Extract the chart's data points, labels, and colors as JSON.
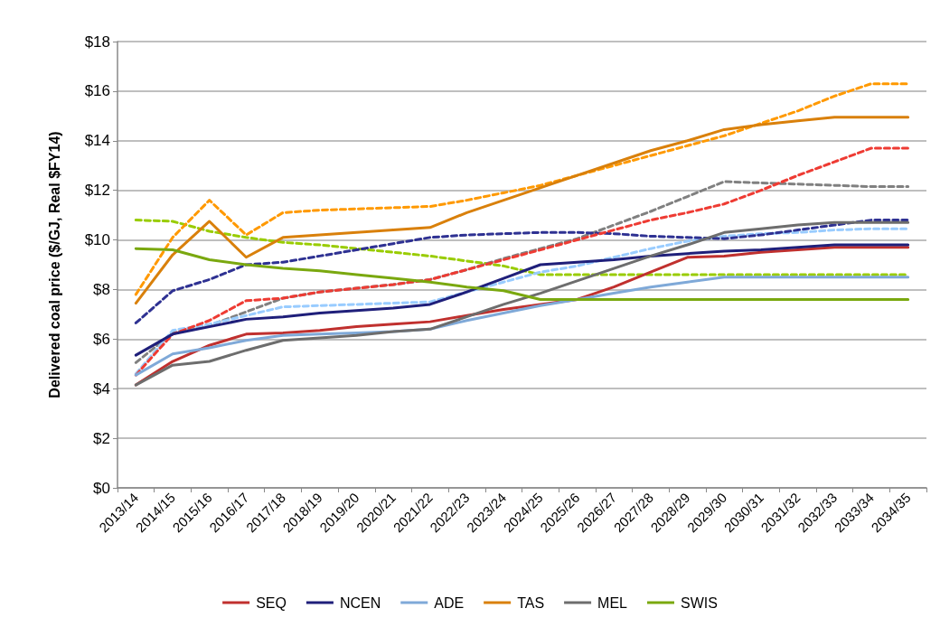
{
  "chart_data": {
    "type": "line",
    "ylabel": "Delivered coal price ($/GJ, Real $FY14)",
    "categories": [
      "2013/14",
      "2014/15",
      "2015/16",
      "2016/17",
      "2017/18",
      "2018/19",
      "2019/20",
      "2020/21",
      "2021/22",
      "2022/23",
      "2023/24",
      "2024/25",
      "2025/26",
      "2026/27",
      "2027/28",
      "2028/29",
      "2029/30",
      "2030/31",
      "2031/32",
      "2032/33",
      "2033/34",
      "2034/35"
    ],
    "ylim": [
      0,
      18
    ],
    "yticks": [
      {
        "value": 0,
        "label": "$0"
      },
      {
        "value": 2,
        "label": "$2"
      },
      {
        "value": 4,
        "label": "$4"
      },
      {
        "value": 6,
        "label": "$6"
      },
      {
        "value": 8,
        "label": "$8"
      },
      {
        "value": 10,
        "label": "$10"
      },
      {
        "value": 12,
        "label": "$12"
      },
      {
        "value": 14,
        "label": "$14"
      },
      {
        "value": 16,
        "label": "$16"
      },
      {
        "value": 18,
        "label": "$18"
      }
    ],
    "grid": "y",
    "legend": "bottom",
    "marker": "none",
    "line_style": "solid",
    "series": [
      {
        "color": "#99cc00",
        "line_style": "dashed",
        "values": [
          10.8,
          10.75,
          10.35,
          10.1,
          9.9,
          9.8,
          9.65,
          9.5,
          9.35,
          9.15,
          8.95,
          8.6,
          8.6,
          8.6,
          8.6,
          8.6,
          8.6,
          8.6,
          8.6,
          8.6,
          8.6,
          8.6
        ]
      },
      {
        "color": "#808080",
        "line_style": "dashed",
        "values": [
          5.05,
          6.25,
          6.55,
          7.1,
          7.65,
          7.9,
          8.05,
          8.2,
          8.4,
          8.8,
          9.25,
          9.65,
          10.05,
          10.6,
          11.15,
          11.75,
          12.35,
          12.3,
          12.25,
          12.2,
          12.15,
          12.15
        ]
      },
      {
        "color": "#ff9900",
        "line_style": "dashed",
        "values": [
          7.8,
          10.1,
          11.6,
          10.2,
          11.1,
          11.2,
          11.25,
          11.3,
          11.35,
          11.6,
          11.9,
          12.2,
          12.6,
          13.0,
          13.4,
          13.8,
          14.2,
          14.7,
          15.2,
          15.8,
          16.3,
          16.3
        ]
      },
      {
        "color": "#99ccff",
        "line_style": "dashed",
        "values": [
          4.6,
          6.35,
          6.6,
          6.95,
          7.3,
          7.35,
          7.4,
          7.45,
          7.5,
          7.9,
          8.3,
          8.7,
          8.95,
          9.3,
          9.65,
          9.95,
          10.15,
          10.25,
          10.3,
          10.4,
          10.45,
          10.45
        ]
      },
      {
        "color": "#2e3192",
        "line_style": "dashed",
        "values": [
          6.65,
          7.95,
          8.4,
          9.0,
          9.1,
          9.35,
          9.6,
          9.85,
          10.1,
          10.2,
          10.25,
          10.3,
          10.3,
          10.25,
          10.15,
          10.1,
          10.05,
          10.2,
          10.4,
          10.6,
          10.8,
          10.8
        ]
      },
      {
        "color": "#ee3b33",
        "line_style": "dashed",
        "values": [
          4.55,
          6.2,
          6.75,
          7.55,
          7.65,
          7.9,
          8.05,
          8.2,
          8.4,
          8.8,
          9.2,
          9.6,
          10.0,
          10.4,
          10.8,
          11.1,
          11.45,
          12.0,
          12.6,
          13.15,
          13.7,
          13.7
        ]
      },
      {
        "name": "SEQ",
        "color": "#c0302e",
        "values": [
          4.15,
          5.1,
          5.75,
          6.2,
          6.25,
          6.35,
          6.5,
          6.6,
          6.7,
          6.95,
          7.2,
          7.4,
          7.6,
          8.1,
          8.7,
          9.3,
          9.35,
          9.5,
          9.6,
          9.7,
          9.7,
          9.7
        ]
      },
      {
        "name": "NCEN",
        "color": "#1f1f7a",
        "values": [
          5.35,
          6.2,
          6.5,
          6.8,
          6.9,
          7.05,
          7.15,
          7.25,
          7.4,
          7.9,
          8.45,
          9.0,
          9.1,
          9.2,
          9.35,
          9.45,
          9.55,
          9.6,
          9.7,
          9.8,
          9.8,
          9.8
        ]
      },
      {
        "name": "ADE",
        "color": "#7fa9d8",
        "values": [
          4.55,
          5.4,
          5.65,
          5.95,
          6.15,
          6.2,
          6.25,
          6.3,
          6.4,
          6.75,
          7.05,
          7.35,
          7.6,
          7.85,
          8.1,
          8.3,
          8.5,
          8.5,
          8.5,
          8.5,
          8.5,
          8.5
        ]
      },
      {
        "name": "TAS",
        "color": "#d9800b",
        "values": [
          7.45,
          9.4,
          10.75,
          9.3,
          10.1,
          10.2,
          10.3,
          10.4,
          10.5,
          11.1,
          11.6,
          12.1,
          12.6,
          13.1,
          13.6,
          14.0,
          14.45,
          14.65,
          14.8,
          14.95,
          14.95,
          14.95
        ]
      },
      {
        "name": "MEL",
        "color": "#6d6d6d",
        "values": [
          4.15,
          4.95,
          5.1,
          5.55,
          5.95,
          6.05,
          6.15,
          6.3,
          6.4,
          6.9,
          7.4,
          7.85,
          8.35,
          8.85,
          9.35,
          9.8,
          10.3,
          10.45,
          10.6,
          10.7,
          10.7,
          10.7
        ]
      },
      {
        "name": "SWIS",
        "color": "#7aa80f",
        "values": [
          9.65,
          9.6,
          9.2,
          9.0,
          8.85,
          8.75,
          8.6,
          8.45,
          8.3,
          8.1,
          7.95,
          7.6,
          7.6,
          7.6,
          7.6,
          7.6,
          7.6,
          7.6,
          7.6,
          7.6,
          7.6,
          7.6
        ]
      }
    ]
  }
}
